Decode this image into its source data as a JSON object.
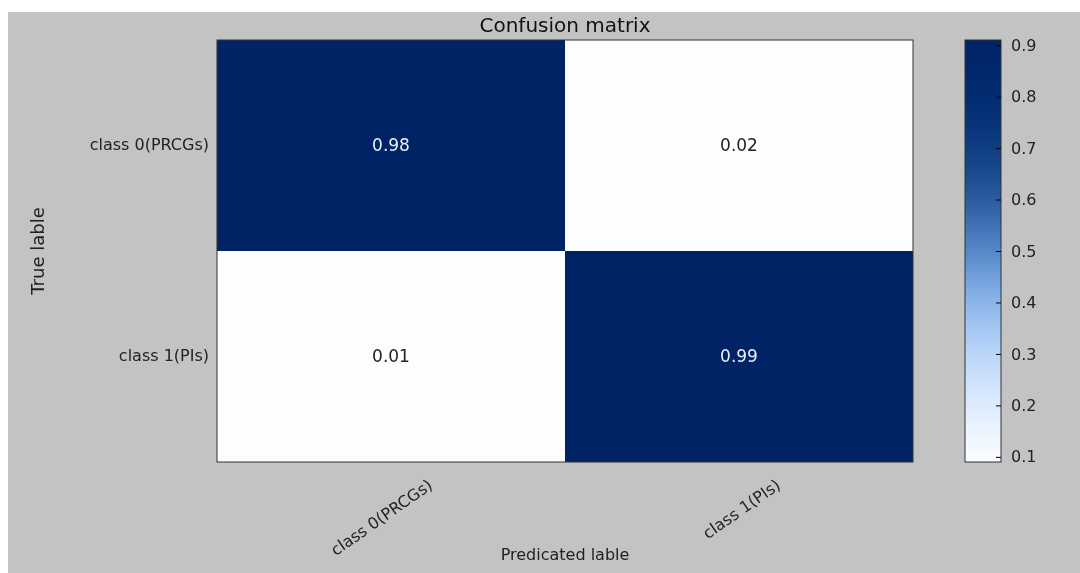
{
  "chart_data": {
    "type": "heatmap",
    "title": "Confusion matrix",
    "xlabel": "Predicated lable",
    "ylabel": "True lable",
    "categories": [
      "class 0(PRCGs)",
      "class 1(PIs)"
    ],
    "y_categories": [
      "class 0(PRCGs)",
      "class 1(PIs)"
    ],
    "cells": [
      [
        0.98,
        0.02
      ],
      [
        0.01,
        0.99
      ]
    ],
    "data_labels": true,
    "clim": [
      0.09,
      0.91
    ],
    "cticks": [
      0.1,
      0.2,
      0.3,
      0.4,
      0.5,
      0.6,
      0.7,
      0.8,
      0.9
    ]
  }
}
